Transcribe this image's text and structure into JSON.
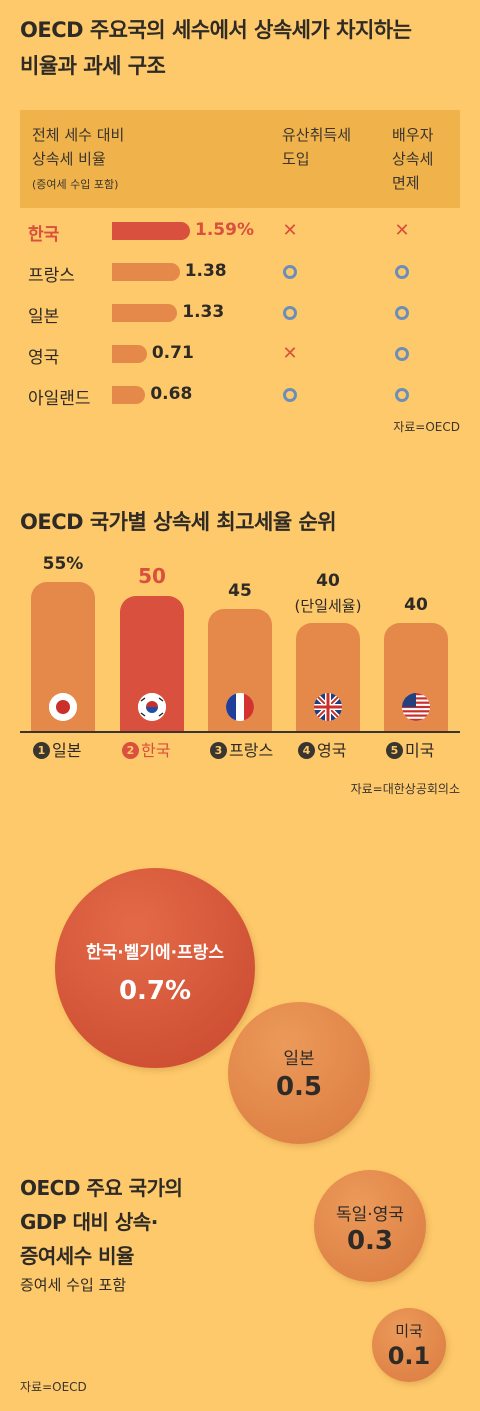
{
  "section1": {
    "title_line1": "OECD 주요국의 세수에서 상속세가 차지하는",
    "title_line2": "비율과 과세 구조",
    "header": {
      "col1_line1": "전체 세수 대비",
      "col1_line2": "상속세 비율",
      "col1_note": "(증여세 수입 포함)",
      "col2_line1": "유산취득세",
      "col2_line2": "도입",
      "col3_line1": "배우자",
      "col3_line2": "상속세",
      "col3_line3": "면제"
    },
    "source": "자료=OECD"
  },
  "colors": {
    "background": "#fec96a",
    "header": "#f0b24a",
    "bar": "#e5894a",
    "highlight": "#d9503e",
    "circle_mark": "#6d8fb7"
  },
  "chart_data": [
    {
      "type": "bar",
      "orientation": "horizontal",
      "categories": [
        "한국",
        "프랑스",
        "일본",
        "영국",
        "아일랜드"
      ],
      "values": [
        1.59,
        1.38,
        1.33,
        0.71,
        0.68
      ],
      "value_labels": [
        "1.59%",
        "1.38",
        "1.33",
        "0.71",
        "0.68"
      ],
      "highlight": "한국",
      "xlim": [
        0,
        1.59
      ],
      "rows": [
        {
          "name": "한국",
          "value": 1.59,
          "value_label": "1.59%",
          "inheritance_acq_tax": "✕",
          "spouse_exempt": "✕"
        },
        {
          "name": "프랑스",
          "value": 1.38,
          "value_label": "1.38",
          "inheritance_acq_tax": "○",
          "spouse_exempt": "○"
        },
        {
          "name": "일본",
          "value": 1.33,
          "value_label": "1.33",
          "inheritance_acq_tax": "○",
          "spouse_exempt": "○"
        },
        {
          "name": "영국",
          "value": 0.71,
          "value_label": "0.71",
          "inheritance_acq_tax": "✕",
          "spouse_exempt": "○"
        },
        {
          "name": "아일랜드",
          "value": 0.68,
          "value_label": "0.68",
          "inheritance_acq_tax": "○",
          "spouse_exempt": "○"
        }
      ]
    },
    {
      "type": "bar",
      "title": "OECD 국가별 상속세 최고세율 순위",
      "categories": [
        "일본",
        "한국",
        "프랑스",
        "영국",
        "미국"
      ],
      "values": [
        55,
        50,
        45,
        40,
        40
      ],
      "value_labels": [
        "55%",
        "50",
        "45",
        "40",
        "40"
      ],
      "ranks": [
        "1",
        "2",
        "3",
        "4",
        "5"
      ],
      "flags": [
        "japan-flag",
        "korea-flag",
        "france-flag",
        "uk-flag",
        "usa-flag"
      ],
      "notes": [
        "",
        "",
        "",
        "(단일세율)",
        ""
      ],
      "highlight": "한국",
      "ylim": [
        0,
        55
      ],
      "source": "자료=대한상공회의소"
    },
    {
      "type": "bubble",
      "title_line1": "OECD 주요 국가의",
      "title_line2": "GDP 대비 상속·",
      "title_line3": "증여세수 비율",
      "subtitle": "증여세 수입 포함",
      "categories": [
        "한국·벨기에·프랑스",
        "일본",
        "독일·영국",
        "미국"
      ],
      "values": [
        0.7,
        0.5,
        0.3,
        0.1
      ],
      "value_labels": [
        "0.7%",
        "0.5",
        "0.3",
        "0.1"
      ],
      "source": "자료=OECD"
    }
  ]
}
